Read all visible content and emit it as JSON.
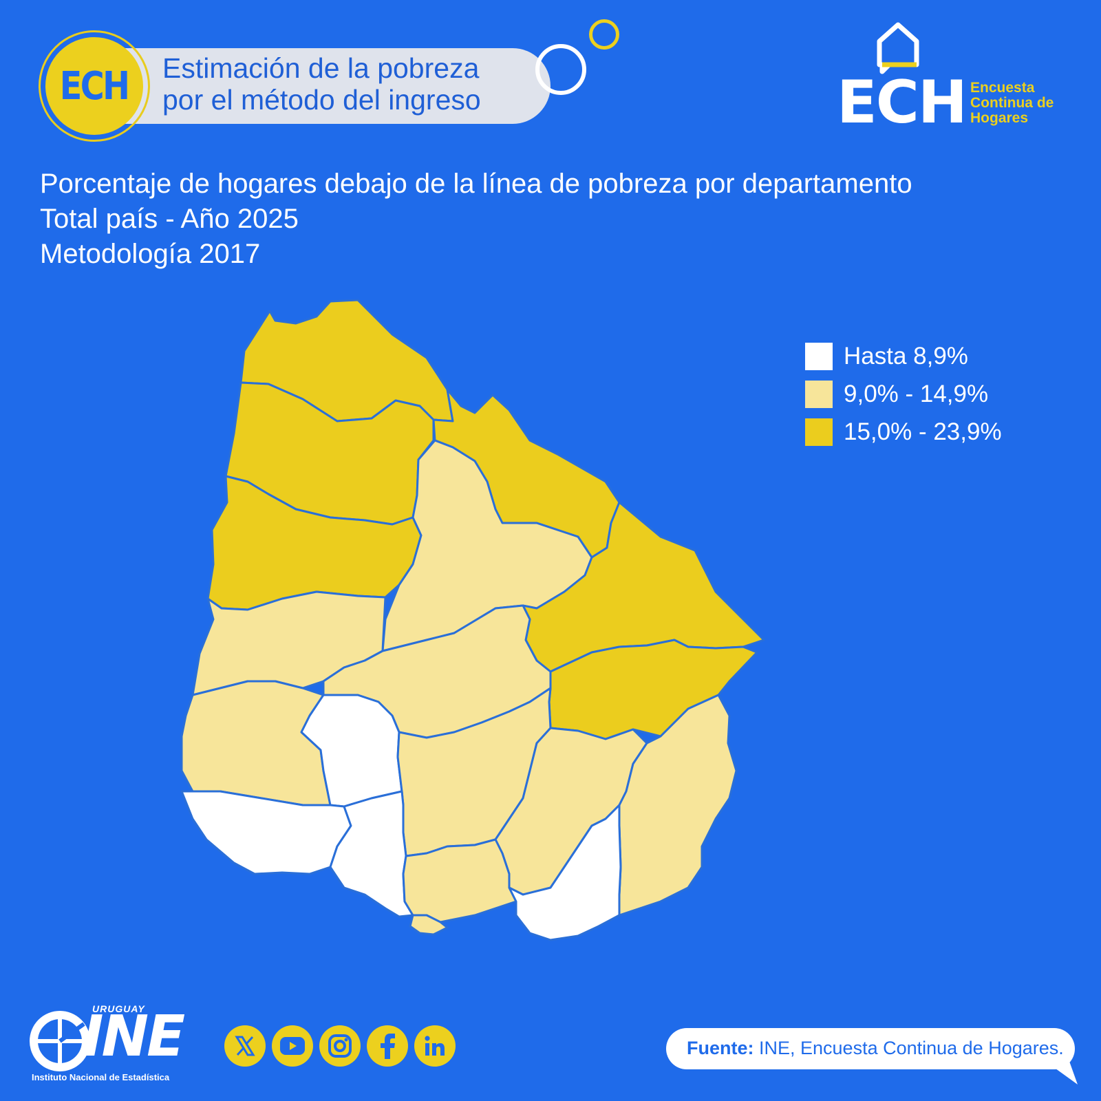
{
  "header": {
    "badge_text": "ECH",
    "pill_line1": "Estimación de la pobreza",
    "pill_line2": "por el método del ingreso"
  },
  "logo": {
    "acronym": "ECH",
    "sub_line1": "Encuesta",
    "sub_line2": "Continua de",
    "sub_line3": "Hogares"
  },
  "titles": {
    "line1": "Porcentaje de hogares debajo de la línea de pobreza por departamento",
    "line2": "Total país - Año 2025",
    "line3": "Metodología 2017"
  },
  "legend": [
    {
      "label": "Hasta 8,9%",
      "color": "#ffffff"
    },
    {
      "label": "9,0% - 14,9%",
      "color": "#f7e59a"
    },
    {
      "label": "15,0% - 23,9%",
      "color": "#ebcd1e"
    }
  ],
  "map": {
    "border_color": "#2a6fd8",
    "regions": [
      {
        "id": "artigas",
        "category": 2
      },
      {
        "id": "salto",
        "category": 2
      },
      {
        "id": "paysandu",
        "category": 2
      },
      {
        "id": "rivera",
        "category": 2
      },
      {
        "id": "cerro-largo",
        "category": 2
      },
      {
        "id": "treinta-y-tres",
        "category": 2
      },
      {
        "id": "tacuarembo",
        "category": 1
      },
      {
        "id": "rio-negro",
        "category": 1
      },
      {
        "id": "durazno",
        "category": 1
      },
      {
        "id": "soriano",
        "category": 1
      },
      {
        "id": "florida",
        "category": 1
      },
      {
        "id": "lavalleja",
        "category": 1
      },
      {
        "id": "rocha",
        "category": 1
      },
      {
        "id": "canelones",
        "category": 1
      },
      {
        "id": "montevideo",
        "category": 1
      },
      {
        "id": "flores",
        "category": 0
      },
      {
        "id": "colonia",
        "category": 0
      },
      {
        "id": "san-jose",
        "category": 0
      },
      {
        "id": "maldonado",
        "category": 0
      }
    ]
  },
  "footer": {
    "ine_top": "URUGUAY",
    "ine_big": "INE",
    "ine_sub": "Instituto Nacional de Estadística",
    "social": [
      "x-icon",
      "youtube-icon",
      "instagram-icon",
      "facebook-icon",
      "linkedin-icon"
    ],
    "source_label": "Fuente:",
    "source_text": " INE, Encuesta Continua de Hogares."
  }
}
